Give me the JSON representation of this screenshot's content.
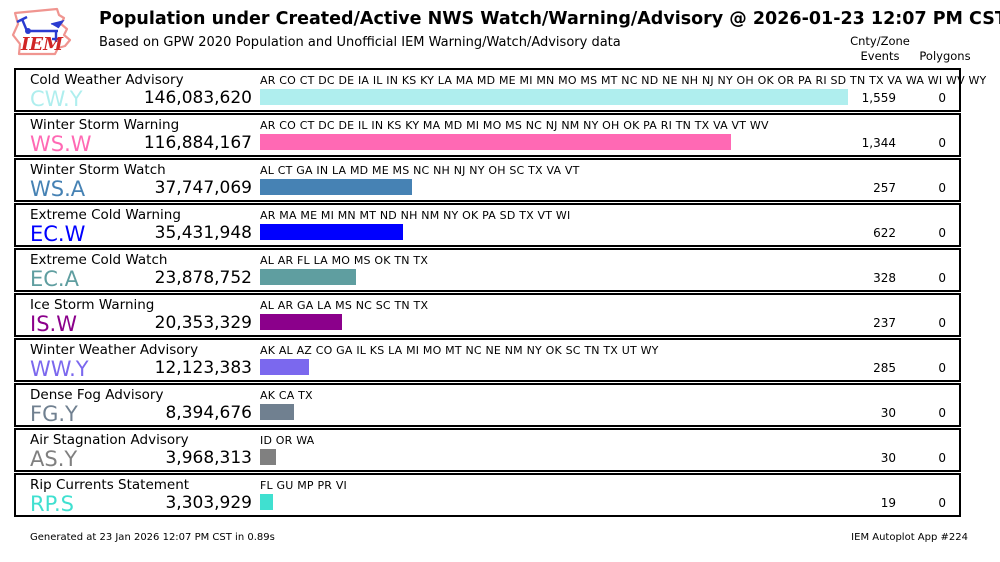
{
  "logo": {
    "text": "IEM"
  },
  "chart_data": {
    "type": "bar",
    "orientation": "horizontal",
    "title": "Population under Created/Active NWS Watch/Warning/Advisory @ 2026-01-23 12:07 PM CST",
    "subtitle": "Based on GPW 2020 Population and Unofficial IEM Warning/Watch/Advisory data",
    "columns": {
      "events_line1": "Cnty/Zone",
      "events_line2": "Events",
      "polygons": "Polygons"
    },
    "xlim": [
      0,
      146083620
    ],
    "max_value": 146083620,
    "rows": [
      {
        "label": "Cold Weather Advisory",
        "code": "CW.Y",
        "population": 146083620,
        "population_label": "146,083,620",
        "states": "AR CO CT DC DE IA IL IN KS KY LA MA MD ME MI MN MO MS MT NC ND NE NH NJ NY OH OK OR PA RI SD TN TX VA WA WI WV WY",
        "events": "1,559",
        "polygons": "0",
        "color": "#AFEEEE"
      },
      {
        "label": "Winter Storm Warning",
        "code": "WS.W",
        "population": 116884167,
        "population_label": "116,884,167",
        "states": "AR CO CT DC DE IL IN KS KY MA MD MI MO MS NC NJ NM NY OH OK PA RI TN TX VA VT WV",
        "events": "1,344",
        "polygons": "0",
        "color": "#FF69B4"
      },
      {
        "label": "Winter Storm Watch",
        "code": "WS.A",
        "population": 37747069,
        "population_label": "37,747,069",
        "states": "AL CT GA IN LA MD ME MS NC NH NJ NY OH SC TX VA VT",
        "events": "257",
        "polygons": "0",
        "color": "#4682B4"
      },
      {
        "label": "Extreme Cold Warning",
        "code": "EC.W",
        "population": 35431948,
        "population_label": "35,431,948",
        "states": "AR MA ME MI MN MT ND NH NM NY OK PA SD TX VT WI",
        "events": "622",
        "polygons": "0",
        "color": "#0000FF"
      },
      {
        "label": "Extreme Cold Watch",
        "code": "EC.A",
        "population": 23878752,
        "population_label": "23,878,752",
        "states": "AL AR FL LA MO MS OK TN TX",
        "events": "328",
        "polygons": "0",
        "color": "#5F9EA0"
      },
      {
        "label": "Ice Storm Warning",
        "code": "IS.W",
        "population": 20353329,
        "population_label": "20,353,329",
        "states": "AL AR GA LA MS NC SC TN TX",
        "events": "237",
        "polygons": "0",
        "color": "#8B008B"
      },
      {
        "label": "Winter Weather Advisory",
        "code": "WW.Y",
        "population": 12123383,
        "population_label": "12,123,383",
        "states": "AK AL AZ CO GA IL KS LA MI MO MT NC NE NM NY OK SC TN TX UT WY",
        "events": "285",
        "polygons": "0",
        "color": "#7B68EE"
      },
      {
        "label": "Dense Fog Advisory",
        "code": "FG.Y",
        "population": 8394676,
        "population_label": "8,394,676",
        "states": "AK CA TX",
        "events": "30",
        "polygons": "0",
        "color": "#708090"
      },
      {
        "label": "Air Stagnation Advisory",
        "code": "AS.Y",
        "population": 3968313,
        "population_label": "3,968,313",
        "states": "ID OR WA",
        "events": "30",
        "polygons": "0",
        "color": "#808080"
      },
      {
        "label": "Rip Currents Statement",
        "code": "RP.S",
        "population": 3303929,
        "population_label": "3,303,929",
        "states": "FL GU MP PR VI",
        "events": "19",
        "polygons": "0",
        "color": "#40E0D0"
      }
    ]
  },
  "footer": {
    "generated": "Generated at 23 Jan 2026 12:07 PM CST in 0.89s",
    "app": "IEM Autoplot App #224"
  }
}
